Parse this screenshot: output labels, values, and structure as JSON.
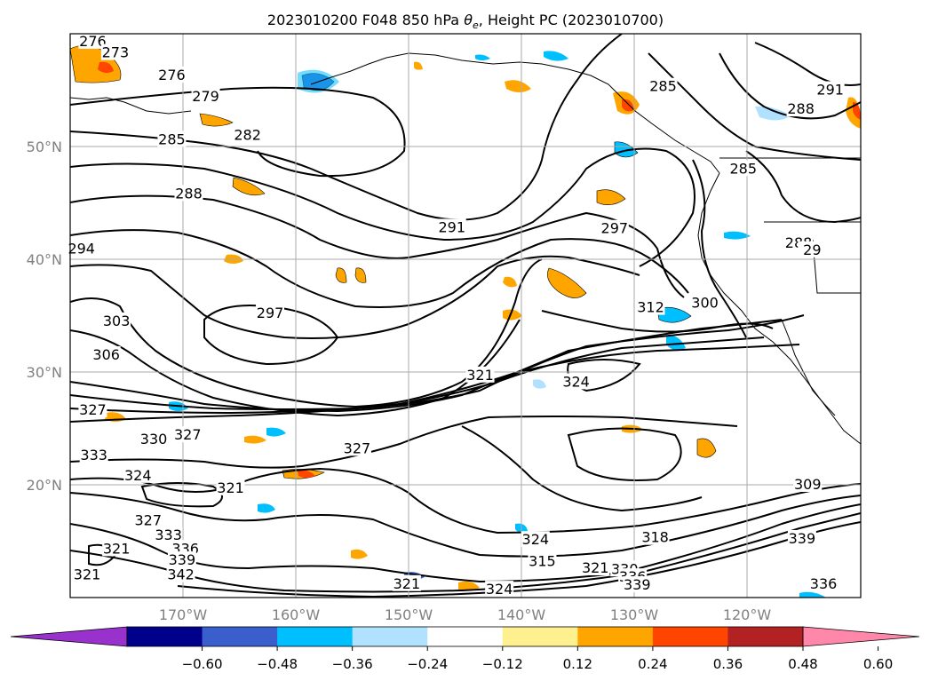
{
  "title": "2023010200 F048 850 hPa θe, Height PC (2023010700)",
  "title_parts": {
    "prefix": "2023010200 F048 850 hPa ",
    "symbol": "θ",
    "subscript": "e",
    "suffix": ", Height PC (2023010700)"
  },
  "map": {
    "projection": "cylindrical",
    "lon_range": [
      -180,
      -110
    ],
    "lat_range": [
      10,
      60
    ],
    "grid": true,
    "lat_labels": [
      "20°N",
      "30°N",
      "40°N",
      "50°N"
    ],
    "lon_labels": [
      "170°W",
      "160°W",
      "150°W",
      "140°W",
      "130°W",
      "120°W"
    ]
  },
  "contour_labels": [
    {
      "text": "276",
      "lon": -178.0,
      "lat": 59.3
    },
    {
      "text": "273",
      "lon": -176.0,
      "lat": 58.3
    },
    {
      "text": "276",
      "lon": -171.0,
      "lat": 56.3
    },
    {
      "text": "279",
      "lon": -168.0,
      "lat": 54.4
    },
    {
      "text": "282",
      "lon": -164.3,
      "lat": 51.0
    },
    {
      "text": "285",
      "lon": -171.0,
      "lat": 50.6
    },
    {
      "text": "288",
      "lon": -169.5,
      "lat": 45.8
    },
    {
      "text": "291",
      "lon": -146.2,
      "lat": 42.8
    },
    {
      "text": "297",
      "lon": -131.8,
      "lat": 42.7
    },
    {
      "text": "294",
      "lon": -179.0,
      "lat": 40.9
    },
    {
      "text": "297",
      "lon": -162.3,
      "lat": 35.2
    },
    {
      "text": "303",
      "lon": -175.9,
      "lat": 34.5
    },
    {
      "text": "306",
      "lon": -176.8,
      "lat": 31.5
    },
    {
      "text": "312",
      "lon": -128.6,
      "lat": 35.7
    },
    {
      "text": "300",
      "lon": -123.8,
      "lat": 36.1
    },
    {
      "text": "324",
      "lon": -135.2,
      "lat": 29.1
    },
    {
      "text": "321",
      "lon": -143.7,
      "lat": 29.7
    },
    {
      "text": "327",
      "lon": -178.0,
      "lat": 26.6
    },
    {
      "text": "327",
      "lon": -169.6,
      "lat": 24.4
    },
    {
      "text": "330",
      "lon": -172.6,
      "lat": 24.0
    },
    {
      "text": "333",
      "lon": -177.9,
      "lat": 22.6
    },
    {
      "text": "327",
      "lon": -154.6,
      "lat": 23.2
    },
    {
      "text": "324",
      "lon": -174.0,
      "lat": 20.8
    },
    {
      "text": "321",
      "lon": -165.8,
      "lat": 19.7
    },
    {
      "text": "327",
      "lon": -173.1,
      "lat": 16.8
    },
    {
      "text": "333",
      "lon": -171.3,
      "lat": 15.5
    },
    {
      "text": "336",
      "lon": -169.8,
      "lat": 14.3
    },
    {
      "text": "339",
      "lon": -170.1,
      "lat": 13.3
    },
    {
      "text": "342",
      "lon": -170.2,
      "lat": 12.0
    },
    {
      "text": "321",
      "lon": -175.9,
      "lat": 14.3
    },
    {
      "text": "321",
      "lon": -178.5,
      "lat": 12.0
    },
    {
      "text": "321",
      "lon": -150.2,
      "lat": 11.2
    },
    {
      "text": "324",
      "lon": -142.0,
      "lat": 10.7
    },
    {
      "text": "315",
      "lon": -138.2,
      "lat": 13.2
    },
    {
      "text": "324",
      "lon": -138.8,
      "lat": 15.1
    },
    {
      "text": "318",
      "lon": -128.2,
      "lat": 15.3
    },
    {
      "text": "321",
      "lon": -133.5,
      "lat": 12.6
    },
    {
      "text": "330",
      "lon": -130.9,
      "lat": 12.5
    },
    {
      "text": "336",
      "lon": -130.2,
      "lat": 11.8
    },
    {
      "text": "339",
      "lon": -129.8,
      "lat": 11.1
    },
    {
      "text": "339",
      "lon": -115.2,
      "lat": 15.2
    },
    {
      "text": "336",
      "lon": -113.3,
      "lat": 11.2
    },
    {
      "text": "309",
      "lon": -114.7,
      "lat": 20.0
    },
    {
      "text": "285",
      "lon": -127.5,
      "lat": 55.3
    },
    {
      "text": "291",
      "lon": -112.7,
      "lat": 55.0
    },
    {
      "text": "288",
      "lon": -115.3,
      "lat": 53.3
    },
    {
      "text": "285",
      "lon": -120.4,
      "lat": 48.0
    },
    {
      "text": "288",
      "lon": -115.5,
      "lat": 41.4
    },
    {
      "text": "29",
      "lon": -114.3,
      "lat": 40.8
    }
  ],
  "colorbar": {
    "colors": [
      "#9932cc",
      "#00008b",
      "#3a5fcd",
      "#00bfff",
      "#b0e2ff",
      "#ffffff",
      "#fff08f",
      "#ffa500",
      "#ff4500",
      "#b22222",
      "#ff88aa"
    ],
    "ticks": [
      "−0.60",
      "−0.48",
      "−0.36",
      "−0.24",
      "−0.12",
      "0.12",
      "0.24",
      "0.36",
      "0.48",
      "0.60"
    ],
    "extend": "both"
  }
}
